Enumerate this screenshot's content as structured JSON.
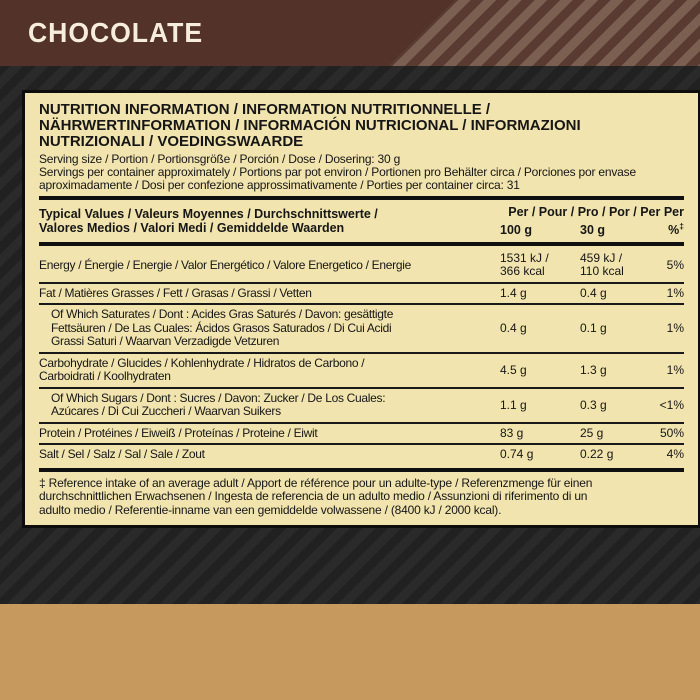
{
  "colors": {
    "banner_brown": "#533229",
    "banner_stripe_light": "#7b6052",
    "panel_cream": "#f1e4ae",
    "background_dark": "#2a2a2a",
    "background_stripe": "#212121",
    "bottom_gold": "#c6995e",
    "text_black": "#161616",
    "flavor_text_cream": "#f6eedb"
  },
  "flavor_banner": {
    "label": "CHOCOLATE"
  },
  "panel": {
    "title": "NUTRITION INFORMATION / INFORMATION NUTRITIONNELLE /\nNÄHRWERTINFORMATION / INFORMACIÓN NUTRICIONAL / INFORMAZIONI\nNUTRIZIONALI / VOEDINGSWAARDE",
    "serving_size": "Serving size / Portion / Portionsgröße / Porción / Dose / Dosering: 30 g",
    "servings_per_container": "Servings per container approximately / Portions par pot environ / Portionen pro Behälter circa / Porciones por envase aproximadamente / Dosi per confezione approssimativamente / Porties per container circa: 31",
    "table": {
      "header_label": "Typical Values / Valeurs Moyennes / Durchschnittswerte /\nValores Medios / Valori Medi / Gemiddelde Waarden",
      "per_header": "Per / Pour / Pro / Por / Per Per",
      "col_per100": "100 g",
      "col_per30": "30 g",
      "col_pct_symbol": "%",
      "col_pct_mark": "‡",
      "rows": [
        {
          "name": "Energy / Énergie / Energie / Valor Energético / Valore Energetico / Energie",
          "per100": "1531 kJ /\n366 kcal",
          "per30": "459 kJ /\n110 kcal",
          "pct": "5%"
        },
        {
          "name": "Fat / Matières Grasses / Fett / Grasas / Grassi / Vetten",
          "per100": "1.4 g",
          "per30": "0.4 g",
          "pct": "1%"
        },
        {
          "name": "Of Which Saturates / Dont : Acides Gras Saturés / Davon: gesättigte\nFettsäuren / De Las Cuales: Ácidos Grasos Saturados / Di Cui Acidi\nGrassi Saturi / Waarvan Verzadigde Vetzuren",
          "per100": "0.4 g",
          "per30": "0.1 g",
          "pct": "1%"
        },
        {
          "name": "Carbohydrate / Glucides / Kohlenhydrate / Hidratos de Carbono /\nCarboidrati / Koolhydraten",
          "per100": "4.5 g",
          "per30": "1.3 g",
          "pct": "1%"
        },
        {
          "name": "Of Which Sugars / Dont : Sucres / Davon: Zucker / De Los Cuales:\nAzúcares / Di Cui Zuccheri / Waarvan Suikers",
          "per100": "1.1 g",
          "per30": "0.3 g",
          "pct": "<1%"
        },
        {
          "name": "Protein / Protéines / Eiweiß / Proteínas / Proteine / Eiwit",
          "per100": "83 g",
          "per30": "25 g",
          "pct": "50%"
        },
        {
          "name": "Salt / Sel / Salz / Sal / Sale / Zout",
          "per100": "0.74 g",
          "per30": "0.22 g",
          "pct": "4%"
        }
      ]
    },
    "footnote": "‡ Reference intake of an average adult / Apport de référence pour un adulte-type / Referenzmenge für einen\ndurchschnittlichen Erwachsenen / Ingesta de referencia de un adulto medio / Assunzioni di riferimento di un\nadulto medio / Referentie-inname van een gemiddelde volwassene / (8400 kJ / 2000 kcal)."
  }
}
